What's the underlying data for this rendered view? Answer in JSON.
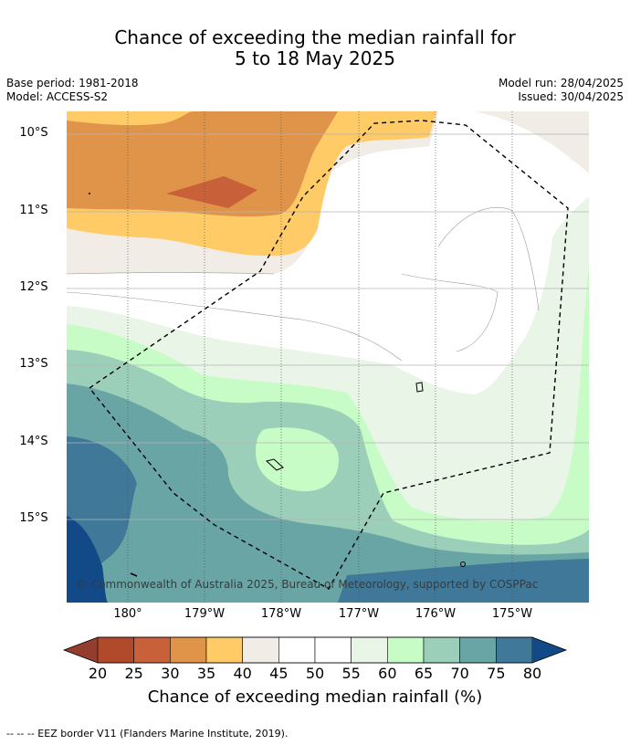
{
  "header": {
    "title_line1": "Chance of exceeding the median rainfall for",
    "title_line2": "5 to 18 May 2025",
    "base_period": "Base period: 1981-2018",
    "model": "Model: ACCESS-S2",
    "model_run": "Model run: 28/04/2025",
    "issued": "Issued: 30/04/2025"
  },
  "map": {
    "lat_labels": [
      "10°S",
      "11°S",
      "12°S",
      "13°S",
      "14°S",
      "15°S"
    ],
    "lon_labels": [
      "180°",
      "179°W",
      "178°W",
      "177°W",
      "176°W",
      "175°W"
    ],
    "copyright": "© Commonwealth of Australia 2025, Bureau of Meteorology, supported by COSPPac"
  },
  "colorbar": {
    "ticks": [
      "20",
      "25",
      "30",
      "35",
      "40",
      "45",
      "50",
      "55",
      "60",
      "65",
      "70",
      "75",
      "80"
    ],
    "colors": [
      "#b04a2a",
      "#c8603a",
      "#e0944a",
      "#fecb66",
      "#f1ece6",
      "#ffffff",
      "#ffffff",
      "#e9f5e6",
      "#c7fcc7",
      "#9ccfb9",
      "#6aa5a6",
      "#3f7899"
    ],
    "low_extend_color": "#943d2c",
    "high_extend_color": "#114a86",
    "label": "Chance of exceeding median rainfall (%)"
  },
  "footer": {
    "legend": "--  --  -- EEZ border V11 (Flanders Marine Institute, 2019)."
  }
}
